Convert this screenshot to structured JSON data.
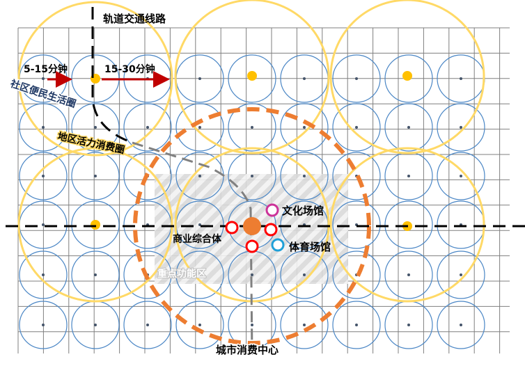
{
  "labels": {
    "rail_line": "轨道交通线路",
    "walk_short": "5-15分钟",
    "walk_long": "15-30分钟",
    "community_circle": "社区便民生活圈",
    "district_circle": "地区活力消费圈",
    "city_center": "城市消费中心",
    "key_zone": "重点功能区",
    "culture_venue": "文化场馆",
    "commercial_complex": "商业综合体",
    "sports_venue": "体育场馆"
  },
  "colors": {
    "grid": "#7f7f7f",
    "small_circle": "#4a86c5",
    "small_circle_dot": "#44546a",
    "district_circle": "#ffd966",
    "city_circle": "#ed7d31",
    "community_node": "#ffc000",
    "city_node": "#ed7d31",
    "arrow": "#c00000",
    "commercial_ring": "#ff0000",
    "culture_ring": "#cc3399",
    "sports_ring": "#1fa0d8",
    "hatch_zone": "#d0d0d0",
    "rail": "#000000"
  }
}
